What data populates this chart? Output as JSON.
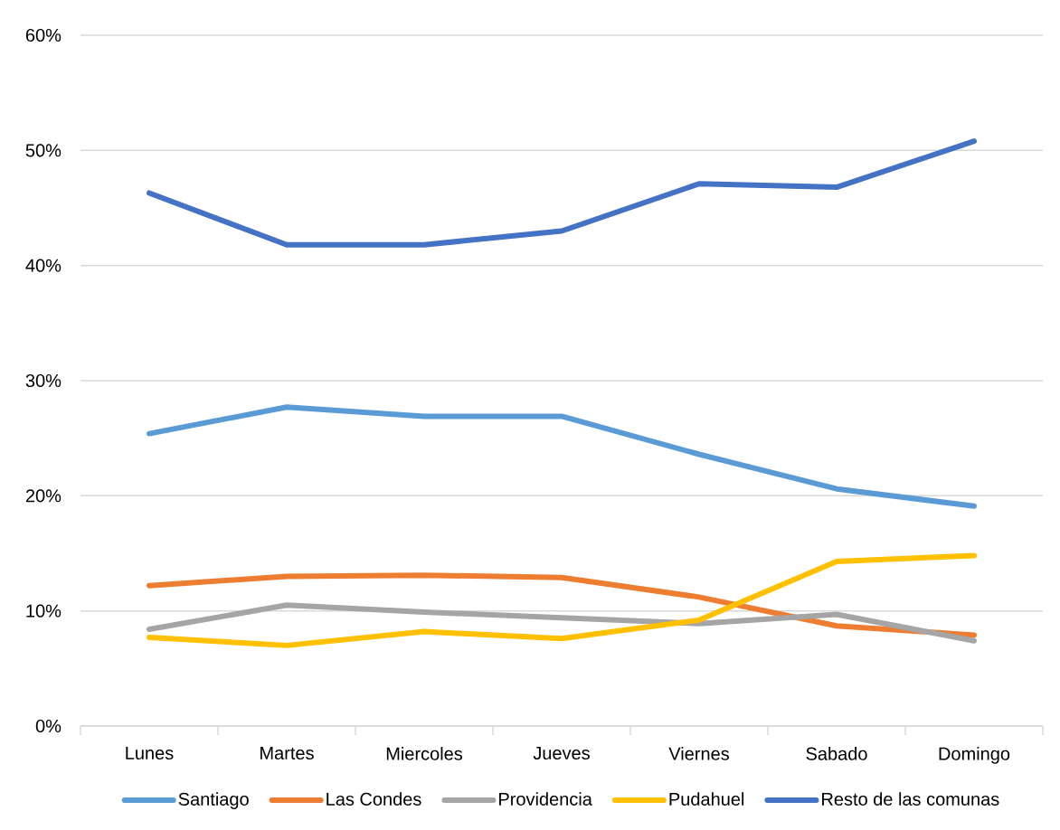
{
  "chart_data": {
    "type": "line",
    "categories": [
      "Lunes",
      "Martes",
      "Miercoles",
      "Jueves",
      "Viernes",
      "Sabado",
      "Domingo"
    ],
    "series": [
      {
        "name": "Santiago",
        "color": "#5b9bd5",
        "values": [
          25.4,
          27.7,
          26.9,
          26.9,
          23.6,
          20.6,
          19.1
        ]
      },
      {
        "name": "Las Condes",
        "color": "#ed7d31",
        "values": [
          12.2,
          13.0,
          13.1,
          12.9,
          11.2,
          8.7,
          7.9
        ]
      },
      {
        "name": "Providencia",
        "color": "#a5a5a5",
        "values": [
          8.4,
          10.5,
          9.9,
          9.4,
          8.9,
          9.7,
          7.4
        ]
      },
      {
        "name": "Pudahuel",
        "color": "#ffc000",
        "values": [
          7.7,
          7.0,
          8.2,
          7.6,
          9.2,
          14.3,
          14.8
        ]
      },
      {
        "name": "Resto de las comunas",
        "color": "#4472c4",
        "values": [
          46.3,
          41.8,
          41.8,
          43.0,
          47.1,
          46.8,
          50.8
        ]
      }
    ],
    "ylim": [
      0,
      60
    ],
    "yticks": [
      {
        "value": 0,
        "label": "0%"
      },
      {
        "value": 10,
        "label": "10%"
      },
      {
        "value": 20,
        "label": "20%"
      },
      {
        "value": 30,
        "label": "30%"
      },
      {
        "value": 40,
        "label": "40%"
      },
      {
        "value": 50,
        "label": "50%"
      },
      {
        "value": 60,
        "label": "60%"
      }
    ],
    "grid": "y",
    "legend": "bottom",
    "marker": "none",
    "line_style": "solid"
  }
}
